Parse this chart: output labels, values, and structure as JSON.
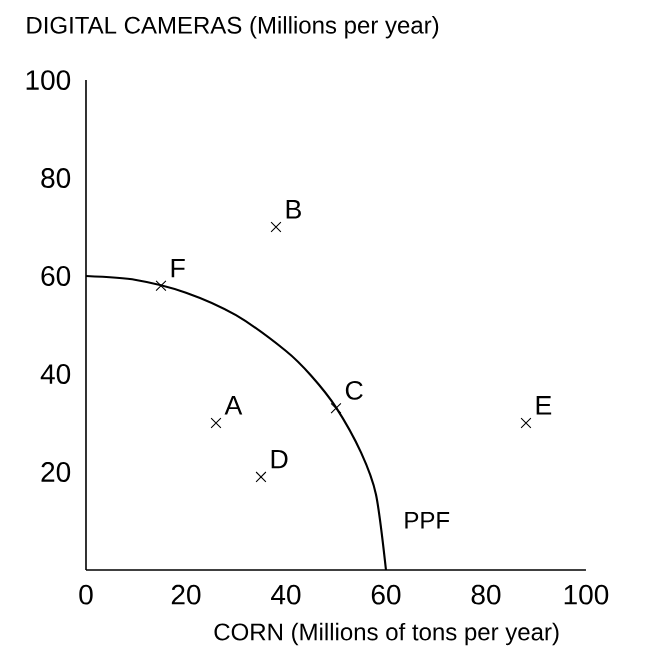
{
  "chart_data": {
    "type": "scatter",
    "xlabel": "CORN (Millions of tons per year)",
    "ylabel": "DIGITAL CAMERAS (Millions per year)",
    "xlim": [
      0,
      100
    ],
    "ylim": [
      0,
      100
    ],
    "xticks": [
      0,
      20,
      40,
      60,
      80,
      100
    ],
    "yticks": [
      20,
      40,
      60,
      80,
      100
    ],
    "grid": false,
    "legend": false,
    "series": [
      {
        "type": "line",
        "name": "PPF",
        "color": "#000000",
        "marker": "none",
        "line_style": "solid",
        "x": [
          0,
          10,
          20,
          30,
          40,
          45,
          50,
          55,
          58,
          60
        ],
        "values": [
          60,
          59.2,
          56.6,
          52,
          44.7,
          39.7,
          33.2,
          24,
          15.4,
          0
        ]
      },
      {
        "color": "#000000",
        "marker": "cross",
        "x": [
          26,
          38,
          50,
          35,
          88,
          15
        ],
        "values": [
          30,
          70,
          33,
          19,
          30,
          58
        ]
      }
    ],
    "annotations": [
      {
        "text": "A",
        "x": 26,
        "y": 30
      },
      {
        "text": "B",
        "x": 38,
        "y": 70
      },
      {
        "text": "C",
        "x": 50,
        "y": 33
      },
      {
        "text": "D",
        "x": 35,
        "y": 19
      },
      {
        "text": "E",
        "x": 88,
        "y": 30
      },
      {
        "text": "F",
        "x": 15,
        "y": 58
      }
    ]
  }
}
